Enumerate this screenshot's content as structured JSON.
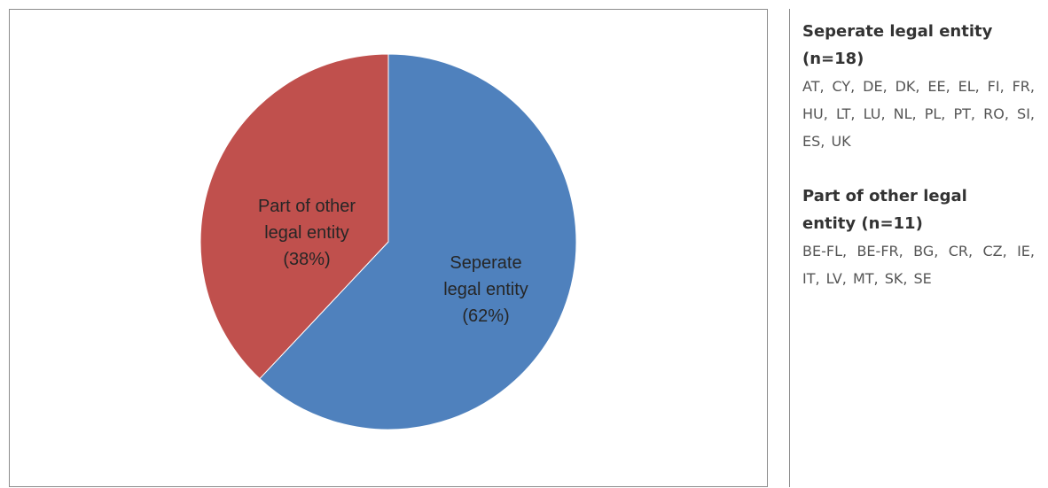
{
  "chart_data": {
    "type": "pie",
    "slices": [
      {
        "name": "Seperate legal entity",
        "label_lines": [
          "Seperate",
          "legal entity",
          "(62%)"
        ],
        "value": 62,
        "color": "#4f81bd"
      },
      {
        "name": "Part of other legal entity",
        "label_lines": [
          "Part of other",
          "legal entity",
          "(38%)"
        ],
        "value": 38,
        "color": "#c0504d"
      }
    ]
  },
  "legend_panel": {
    "groups": [
      {
        "title": "Seperate legal entity (n=18)",
        "members": "AT, CY, DE, DK, EE, EL, FI, FR, HU, LT, LU, NL, PL, PT, RO, SI, ES, UK"
      },
      {
        "title": "Part of other legal entity (n=11)",
        "members": "BE-FL, BE-FR, BG, CR, CZ, IE, IT, LV, MT, SK, SE"
      }
    ]
  }
}
